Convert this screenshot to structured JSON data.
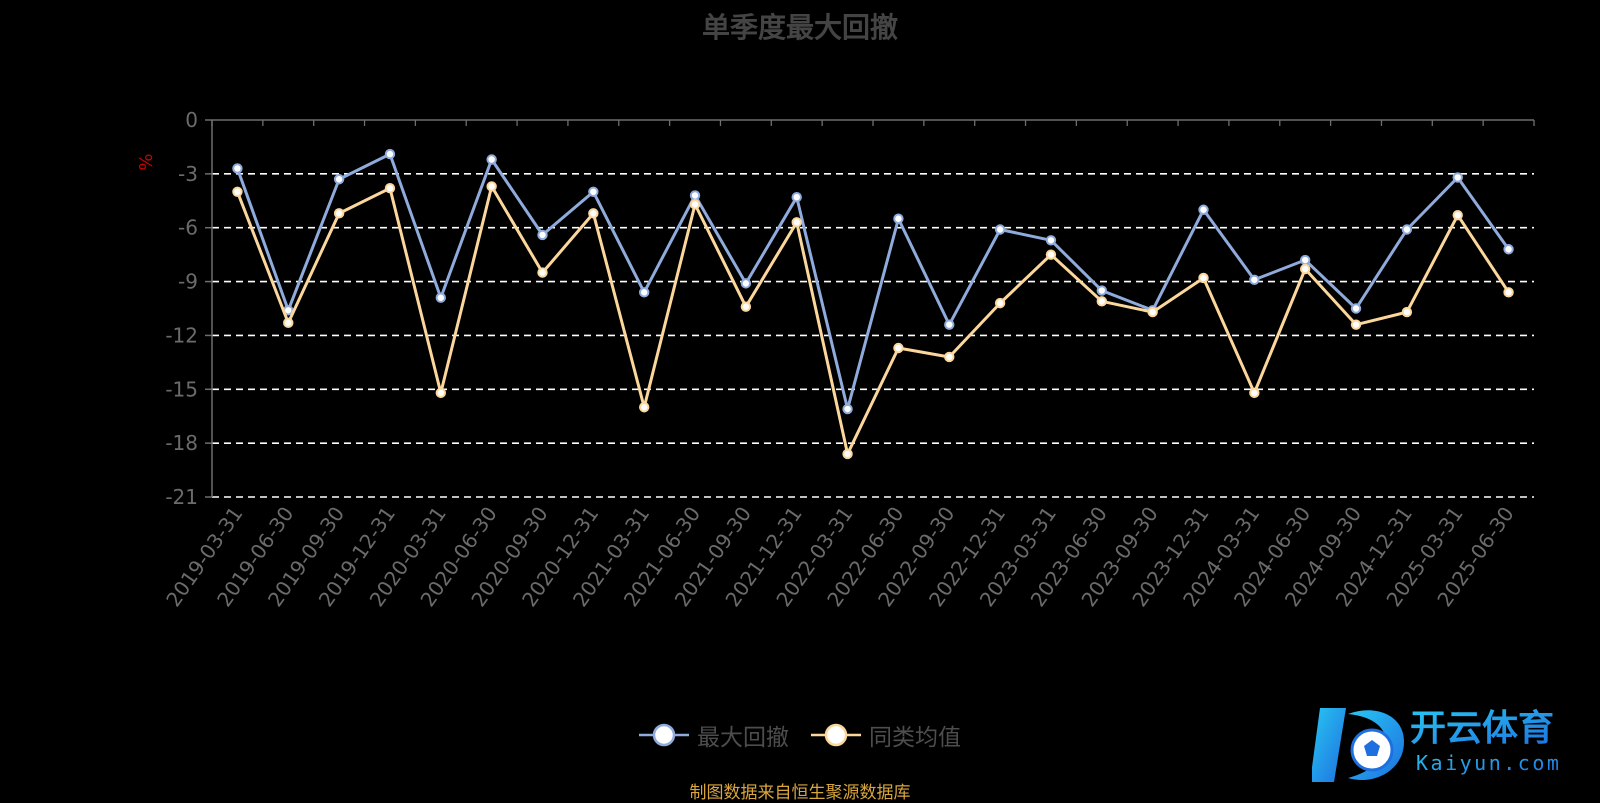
{
  "title": "单季度最大回撤",
  "source_note": "制图数据来自恒生聚源数据库",
  "brand": {
    "name_cn": "开云体育",
    "name_en": "Kaiyun.com",
    "colors": [
      "#1e6fe0",
      "#28c7f2"
    ]
  },
  "colors": {
    "background": "#000000",
    "axis": "#6e6e6e",
    "tick_label": "#6b6b6b",
    "grid": "#ffffff",
    "unit_label": "#cc0000",
    "title": "#444444",
    "source_note": "#d9a63e"
  },
  "chart_data": {
    "type": "line",
    "title": "单季度最大回撤",
    "ylabel": "%",
    "ylim": [
      -21,
      0
    ],
    "yticks": [
      0,
      -3,
      -6,
      -9,
      -12,
      -15,
      -18,
      -21
    ],
    "grid": "horizontal dashed",
    "legend_position": "bottom-center",
    "x": [
      "2019-03-31",
      "2019-06-30",
      "2019-09-30",
      "2019-12-31",
      "2020-03-31",
      "2020-06-30",
      "2020-09-30",
      "2020-12-31",
      "2021-03-31",
      "2021-06-30",
      "2021-09-30",
      "2021-12-31",
      "2022-03-31",
      "2022-06-30",
      "2022-09-30",
      "2022-12-31",
      "2023-03-31",
      "2023-06-30",
      "2023-09-30",
      "2023-12-31",
      "2024-03-31",
      "2024-06-30",
      "2024-09-30",
      "2024-12-31",
      "2025-03-31",
      "2025-06-30"
    ],
    "series": [
      {
        "name": "最大回撤",
        "color": "#8fabdc",
        "values": [
          -2.7,
          -10.6,
          -3.3,
          -1.9,
          -9.9,
          -2.2,
          -6.4,
          -4.0,
          -9.6,
          -4.2,
          -9.1,
          -4.3,
          -16.1,
          -5.5,
          -11.4,
          -6.1,
          -6.7,
          -9.5,
          -10.6,
          -5.0,
          -8.9,
          -7.8,
          -10.5,
          -6.1,
          -3.2,
          -7.2
        ]
      },
      {
        "name": "同类均值",
        "color": "#fcd79c",
        "values": [
          -4.0,
          -11.3,
          -5.2,
          -3.8,
          -15.2,
          -3.7,
          -8.5,
          -5.2,
          -16.0,
          -4.7,
          -10.4,
          -5.7,
          -18.6,
          -12.7,
          -13.2,
          -10.2,
          -7.5,
          -10.1,
          -10.7,
          -8.8,
          -15.2,
          -8.3,
          -11.4,
          -10.7,
          -5.3,
          -9.6
        ]
      }
    ]
  }
}
